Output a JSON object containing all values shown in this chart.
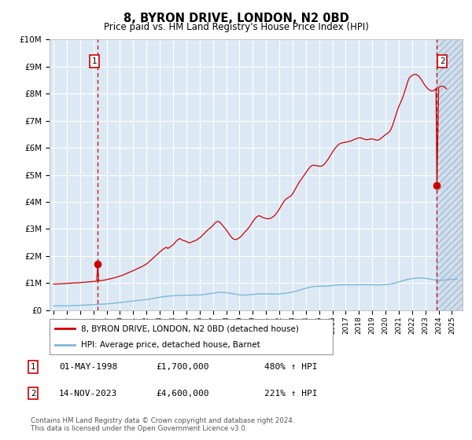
{
  "title": "8, BYRON DRIVE, LONDON, N2 0BD",
  "subtitle": "Price paid vs. HM Land Registry's House Price Index (HPI)",
  "sale1_date": "01-MAY-1998",
  "sale1_price": 1700000,
  "sale1_year": 1998.33,
  "sale1_label": "480% ↑ HPI",
  "sale2_date": "14-NOV-2023",
  "sale2_price": 4600000,
  "sale2_year": 2023.87,
  "sale2_label": "221% ↑ HPI",
  "hpi_line_color": "#7db8d8",
  "price_line_color": "#cc0000",
  "sale_marker_color": "#cc0000",
  "dashed_line_color": "#cc0000",
  "plot_area_color": "#dce9f5",
  "grid_color": "#ffffff",
  "ylim": [
    0,
    10000000
  ],
  "yticks": [
    0,
    1000000,
    2000000,
    3000000,
    4000000,
    5000000,
    6000000,
    7000000,
    8000000,
    9000000,
    10000000
  ],
  "ytick_labels": [
    "£0",
    "£1M",
    "£2M",
    "£3M",
    "£4M",
    "£5M",
    "£6M",
    "£7M",
    "£8M",
    "£9M",
    "£10M"
  ],
  "xlim_start": 1994.7,
  "xlim_end": 2025.8,
  "copyright_text": "Contains HM Land Registry data © Crown copyright and database right 2024.\nThis data is licensed under the Open Government Licence v3.0.",
  "legend_label1": "8, BYRON DRIVE, LONDON, N2 0BD (detached house)",
  "legend_label2": "HPI: Average price, detached house, Barnet",
  "shade_x_start": 2023.87,
  "hpi_data": [
    [
      1995.0,
      155000
    ],
    [
      1995.2,
      158000
    ],
    [
      1995.4,
      160000
    ],
    [
      1995.6,
      162000
    ],
    [
      1995.8,
      163000
    ],
    [
      1996.0,
      165000
    ],
    [
      1996.2,
      167000
    ],
    [
      1996.4,
      170000
    ],
    [
      1996.6,
      173000
    ],
    [
      1996.8,
      176000
    ],
    [
      1997.0,
      179000
    ],
    [
      1997.2,
      183000
    ],
    [
      1997.4,
      188000
    ],
    [
      1997.6,
      193000
    ],
    [
      1997.8,
      198000
    ],
    [
      1998.0,
      205000
    ],
    [
      1998.2,
      212000
    ],
    [
      1998.4,
      218000
    ],
    [
      1998.6,
      223000
    ],
    [
      1998.8,
      228000
    ],
    [
      1999.0,
      234000
    ],
    [
      1999.2,
      242000
    ],
    [
      1999.4,
      252000
    ],
    [
      1999.6,
      262000
    ],
    [
      1999.8,
      273000
    ],
    [
      2000.0,
      284000
    ],
    [
      2000.2,
      296000
    ],
    [
      2000.4,
      308000
    ],
    [
      2000.6,
      320000
    ],
    [
      2000.8,
      331000
    ],
    [
      2001.0,
      342000
    ],
    [
      2001.2,
      354000
    ],
    [
      2001.4,
      365000
    ],
    [
      2001.6,
      374000
    ],
    [
      2001.8,
      382000
    ],
    [
      2002.0,
      392000
    ],
    [
      2002.2,
      408000
    ],
    [
      2002.4,
      426000
    ],
    [
      2002.6,
      445000
    ],
    [
      2002.8,
      463000
    ],
    [
      2003.0,
      480000
    ],
    [
      2003.2,
      495000
    ],
    [
      2003.4,
      508000
    ],
    [
      2003.6,
      519000
    ],
    [
      2003.8,
      527000
    ],
    [
      2004.0,
      534000
    ],
    [
      2004.2,
      541000
    ],
    [
      2004.4,
      547000
    ],
    [
      2004.6,
      551000
    ],
    [
      2004.8,
      553000
    ],
    [
      2005.0,
      554000
    ],
    [
      2005.2,
      554000
    ],
    [
      2005.4,
      554000
    ],
    [
      2005.6,
      556000
    ],
    [
      2005.8,
      559000
    ],
    [
      2006.0,
      563000
    ],
    [
      2006.2,
      572000
    ],
    [
      2006.4,
      583000
    ],
    [
      2006.6,
      597000
    ],
    [
      2006.8,
      611000
    ],
    [
      2007.0,
      627000
    ],
    [
      2007.2,
      643000
    ],
    [
      2007.4,
      656000
    ],
    [
      2007.6,
      662000
    ],
    [
      2007.8,
      659000
    ],
    [
      2008.0,
      649000
    ],
    [
      2008.2,
      634000
    ],
    [
      2008.4,
      617000
    ],
    [
      2008.6,
      600000
    ],
    [
      2008.8,
      583000
    ],
    [
      2009.0,
      567000
    ],
    [
      2009.2,
      558000
    ],
    [
      2009.4,
      557000
    ],
    [
      2009.6,
      563000
    ],
    [
      2009.8,
      573000
    ],
    [
      2010.0,
      584000
    ],
    [
      2010.2,
      594000
    ],
    [
      2010.4,
      601000
    ],
    [
      2010.6,
      604000
    ],
    [
      2010.8,
      604000
    ],
    [
      2011.0,
      601000
    ],
    [
      2011.2,
      598000
    ],
    [
      2011.4,
      597000
    ],
    [
      2011.6,
      598000
    ],
    [
      2011.8,
      601000
    ],
    [
      2012.0,
      606000
    ],
    [
      2012.2,
      613000
    ],
    [
      2012.4,
      623000
    ],
    [
      2012.6,
      636000
    ],
    [
      2012.8,
      652000
    ],
    [
      2013.0,
      671000
    ],
    [
      2013.2,
      695000
    ],
    [
      2013.4,
      723000
    ],
    [
      2013.6,
      753000
    ],
    [
      2013.8,
      783000
    ],
    [
      2014.0,
      812000
    ],
    [
      2014.2,
      838000
    ],
    [
      2014.4,
      859000
    ],
    [
      2014.6,
      874000
    ],
    [
      2014.8,
      882000
    ],
    [
      2015.0,
      884000
    ],
    [
      2015.2,
      884000
    ],
    [
      2015.4,
      886000
    ],
    [
      2015.6,
      892000
    ],
    [
      2015.8,
      900000
    ],
    [
      2016.0,
      911000
    ],
    [
      2016.2,
      922000
    ],
    [
      2016.4,
      931000
    ],
    [
      2016.6,
      937000
    ],
    [
      2016.8,
      939000
    ],
    [
      2017.0,
      938000
    ],
    [
      2017.2,
      936000
    ],
    [
      2017.4,
      935000
    ],
    [
      2017.6,
      935000
    ],
    [
      2017.8,
      937000
    ],
    [
      2018.0,
      940000
    ],
    [
      2018.2,
      943000
    ],
    [
      2018.4,
      943000
    ],
    [
      2018.6,
      941000
    ],
    [
      2018.8,
      938000
    ],
    [
      2019.0,
      934000
    ],
    [
      2019.2,
      932000
    ],
    [
      2019.4,
      932000
    ],
    [
      2019.6,
      935000
    ],
    [
      2019.8,
      940000
    ],
    [
      2020.0,
      947000
    ],
    [
      2020.2,
      955000
    ],
    [
      2020.4,
      968000
    ],
    [
      2020.6,
      989000
    ],
    [
      2020.8,
      1015000
    ],
    [
      2021.0,
      1044000
    ],
    [
      2021.2,
      1075000
    ],
    [
      2021.4,
      1105000
    ],
    [
      2021.6,
      1132000
    ],
    [
      2021.8,
      1153000
    ],
    [
      2022.0,
      1168000
    ],
    [
      2022.2,
      1179000
    ],
    [
      2022.4,
      1188000
    ],
    [
      2022.6,
      1192000
    ],
    [
      2022.8,
      1188000
    ],
    [
      2023.0,
      1176000
    ],
    [
      2023.2,
      1160000
    ],
    [
      2023.4,
      1143000
    ],
    [
      2023.6,
      1128000
    ],
    [
      2023.8,
      1116000
    ],
    [
      2024.0,
      1109000
    ],
    [
      2024.2,
      1108000
    ],
    [
      2024.4,
      1113000
    ],
    [
      2024.6,
      1122000
    ],
    [
      2024.8,
      1133000
    ],
    [
      2025.0,
      1143000
    ],
    [
      2025.4,
      1150000
    ]
  ],
  "red_line_data": [
    [
      1995.0,
      970000
    ],
    [
      1995.1,
      960000
    ],
    [
      1995.2,
      975000
    ],
    [
      1995.3,
      968000
    ],
    [
      1995.4,
      972000
    ],
    [
      1995.5,
      980000
    ],
    [
      1995.6,
      975000
    ],
    [
      1995.7,
      985000
    ],
    [
      1995.8,
      978000
    ],
    [
      1995.9,
      990000
    ],
    [
      1996.0,
      988000
    ],
    [
      1996.1,
      995000
    ],
    [
      1996.2,
      1000000
    ],
    [
      1996.3,
      993000
    ],
    [
      1996.4,
      1005000
    ],
    [
      1996.5,
      1010000
    ],
    [
      1996.6,
      1005000
    ],
    [
      1996.7,
      1015000
    ],
    [
      1996.8,
      1008000
    ],
    [
      1996.9,
      1020000
    ],
    [
      1997.0,
      1018000
    ],
    [
      1997.1,
      1025000
    ],
    [
      1997.2,
      1032000
    ],
    [
      1997.3,
      1028000
    ],
    [
      1997.4,
      1038000
    ],
    [
      1997.5,
      1045000
    ],
    [
      1997.6,
      1040000
    ],
    [
      1997.7,
      1052000
    ],
    [
      1997.8,
      1048000
    ],
    [
      1997.9,
      1060000
    ],
    [
      1998.0,
      1058000
    ],
    [
      1998.1,
      1068000
    ],
    [
      1998.2,
      1065000
    ],
    [
      1998.25,
      1072000
    ],
    [
      1998.33,
      1700000
    ],
    [
      1998.4,
      1082000
    ],
    [
      1998.5,
      1090000
    ],
    [
      1998.6,
      1095000
    ],
    [
      1998.7,
      1105000
    ],
    [
      1998.8,
      1110000
    ],
    [
      1999.0,
      1130000
    ],
    [
      1999.2,
      1155000
    ],
    [
      1999.4,
      1175000
    ],
    [
      1999.6,
      1200000
    ],
    [
      1999.8,
      1230000
    ],
    [
      2000.0,
      1260000
    ],
    [
      2000.2,
      1295000
    ],
    [
      2000.4,
      1335000
    ],
    [
      2000.6,
      1380000
    ],
    [
      2000.8,
      1420000
    ],
    [
      2001.0,
      1460000
    ],
    [
      2001.2,
      1510000
    ],
    [
      2001.4,
      1555000
    ],
    [
      2001.6,
      1600000
    ],
    [
      2001.8,
      1650000
    ],
    [
      2002.0,
      1710000
    ],
    [
      2002.2,
      1790000
    ],
    [
      2002.4,
      1880000
    ],
    [
      2002.6,
      1970000
    ],
    [
      2002.8,
      2060000
    ],
    [
      2003.0,
      2150000
    ],
    [
      2003.1,
      2190000
    ],
    [
      2003.2,
      2240000
    ],
    [
      2003.3,
      2270000
    ],
    [
      2003.4,
      2300000
    ],
    [
      2003.5,
      2330000
    ],
    [
      2003.6,
      2280000
    ],
    [
      2003.7,
      2310000
    ],
    [
      2003.8,
      2350000
    ],
    [
      2003.9,
      2380000
    ],
    [
      2004.0,
      2420000
    ],
    [
      2004.1,
      2470000
    ],
    [
      2004.2,
      2530000
    ],
    [
      2004.3,
      2580000
    ],
    [
      2004.4,
      2620000
    ],
    [
      2004.5,
      2650000
    ],
    [
      2004.6,
      2620000
    ],
    [
      2004.7,
      2590000
    ],
    [
      2004.8,
      2570000
    ],
    [
      2004.9,
      2560000
    ],
    [
      2005.0,
      2540000
    ],
    [
      2005.1,
      2510000
    ],
    [
      2005.2,
      2490000
    ],
    [
      2005.3,
      2500000
    ],
    [
      2005.4,
      2520000
    ],
    [
      2005.5,
      2540000
    ],
    [
      2005.6,
      2560000
    ],
    [
      2005.7,
      2580000
    ],
    [
      2005.8,
      2600000
    ],
    [
      2005.9,
      2640000
    ],
    [
      2006.0,
      2670000
    ],
    [
      2006.1,
      2710000
    ],
    [
      2006.2,
      2760000
    ],
    [
      2006.3,
      2810000
    ],
    [
      2006.4,
      2860000
    ],
    [
      2006.5,
      2910000
    ],
    [
      2006.6,
      2960000
    ],
    [
      2006.7,
      3000000
    ],
    [
      2006.8,
      3040000
    ],
    [
      2006.9,
      3080000
    ],
    [
      2007.0,
      3130000
    ],
    [
      2007.1,
      3190000
    ],
    [
      2007.2,
      3240000
    ],
    [
      2007.3,
      3270000
    ],
    [
      2007.4,
      3280000
    ],
    [
      2007.5,
      3260000
    ],
    [
      2007.6,
      3210000
    ],
    [
      2007.7,
      3150000
    ],
    [
      2007.8,
      3090000
    ],
    [
      2007.9,
      3030000
    ],
    [
      2008.0,
      2970000
    ],
    [
      2008.1,
      2900000
    ],
    [
      2008.2,
      2830000
    ],
    [
      2008.3,
      2760000
    ],
    [
      2008.4,
      2700000
    ],
    [
      2008.5,
      2650000
    ],
    [
      2008.6,
      2620000
    ],
    [
      2008.7,
      2610000
    ],
    [
      2008.8,
      2620000
    ],
    [
      2008.9,
      2650000
    ],
    [
      2009.0,
      2680000
    ],
    [
      2009.1,
      2720000
    ],
    [
      2009.2,
      2770000
    ],
    [
      2009.3,
      2830000
    ],
    [
      2009.4,
      2890000
    ],
    [
      2009.5,
      2940000
    ],
    [
      2009.6,
      2990000
    ],
    [
      2009.7,
      3050000
    ],
    [
      2009.8,
      3120000
    ],
    [
      2009.9,
      3190000
    ],
    [
      2010.0,
      3270000
    ],
    [
      2010.1,
      3340000
    ],
    [
      2010.2,
      3400000
    ],
    [
      2010.3,
      3450000
    ],
    [
      2010.4,
      3480000
    ],
    [
      2010.5,
      3490000
    ],
    [
      2010.6,
      3470000
    ],
    [
      2010.7,
      3440000
    ],
    [
      2010.8,
      3420000
    ],
    [
      2010.9,
      3400000
    ],
    [
      2011.0,
      3390000
    ],
    [
      2011.1,
      3380000
    ],
    [
      2011.2,
      3380000
    ],
    [
      2011.3,
      3390000
    ],
    [
      2011.4,
      3410000
    ],
    [
      2011.5,
      3440000
    ],
    [
      2011.6,
      3480000
    ],
    [
      2011.7,
      3530000
    ],
    [
      2011.8,
      3590000
    ],
    [
      2011.9,
      3660000
    ],
    [
      2012.0,
      3740000
    ],
    [
      2012.1,
      3820000
    ],
    [
      2012.2,
      3900000
    ],
    [
      2012.3,
      3980000
    ],
    [
      2012.4,
      4050000
    ],
    [
      2012.5,
      4100000
    ],
    [
      2012.6,
      4140000
    ],
    [
      2012.7,
      4170000
    ],
    [
      2012.8,
      4200000
    ],
    [
      2012.9,
      4240000
    ],
    [
      2013.0,
      4300000
    ],
    [
      2013.1,
      4380000
    ],
    [
      2013.2,
      4470000
    ],
    [
      2013.3,
      4560000
    ],
    [
      2013.4,
      4650000
    ],
    [
      2013.5,
      4730000
    ],
    [
      2013.6,
      4800000
    ],
    [
      2013.7,
      4870000
    ],
    [
      2013.8,
      4940000
    ],
    [
      2013.9,
      5010000
    ],
    [
      2014.0,
      5080000
    ],
    [
      2014.1,
      5150000
    ],
    [
      2014.2,
      5220000
    ],
    [
      2014.3,
      5280000
    ],
    [
      2014.4,
      5330000
    ],
    [
      2014.5,
      5350000
    ],
    [
      2014.6,
      5360000
    ],
    [
      2014.7,
      5350000
    ],
    [
      2014.8,
      5340000
    ],
    [
      2014.9,
      5330000
    ],
    [
      2015.0,
      5320000
    ],
    [
      2015.1,
      5320000
    ],
    [
      2015.2,
      5330000
    ],
    [
      2015.3,
      5360000
    ],
    [
      2015.4,
      5400000
    ],
    [
      2015.5,
      5460000
    ],
    [
      2015.6,
      5530000
    ],
    [
      2015.7,
      5600000
    ],
    [
      2015.8,
      5680000
    ],
    [
      2015.9,
      5760000
    ],
    [
      2016.0,
      5840000
    ],
    [
      2016.1,
      5910000
    ],
    [
      2016.2,
      5980000
    ],
    [
      2016.3,
      6040000
    ],
    [
      2016.4,
      6090000
    ],
    [
      2016.5,
      6140000
    ],
    [
      2016.6,
      6160000
    ],
    [
      2016.7,
      6180000
    ],
    [
      2016.8,
      6190000
    ],
    [
      2016.9,
      6200000
    ],
    [
      2017.0,
      6210000
    ],
    [
      2017.1,
      6220000
    ],
    [
      2017.2,
      6230000
    ],
    [
      2017.3,
      6240000
    ],
    [
      2017.4,
      6260000
    ],
    [
      2017.5,
      6280000
    ],
    [
      2017.6,
      6300000
    ],
    [
      2017.7,
      6320000
    ],
    [
      2017.8,
      6340000
    ],
    [
      2017.9,
      6360000
    ],
    [
      2018.0,
      6370000
    ],
    [
      2018.1,
      6370000
    ],
    [
      2018.2,
      6360000
    ],
    [
      2018.3,
      6340000
    ],
    [
      2018.4,
      6320000
    ],
    [
      2018.5,
      6310000
    ],
    [
      2018.6,
      6300000
    ],
    [
      2018.7,
      6310000
    ],
    [
      2018.8,
      6320000
    ],
    [
      2018.9,
      6330000
    ],
    [
      2019.0,
      6330000
    ],
    [
      2019.1,
      6320000
    ],
    [
      2019.2,
      6300000
    ],
    [
      2019.3,
      6290000
    ],
    [
      2019.4,
      6280000
    ],
    [
      2019.5,
      6300000
    ],
    [
      2019.6,
      6330000
    ],
    [
      2019.7,
      6370000
    ],
    [
      2019.8,
      6410000
    ],
    [
      2019.9,
      6450000
    ],
    [
      2020.0,
      6490000
    ],
    [
      2020.1,
      6520000
    ],
    [
      2020.2,
      6550000
    ],
    [
      2020.3,
      6600000
    ],
    [
      2020.4,
      6680000
    ],
    [
      2020.5,
      6790000
    ],
    [
      2020.6,
      6930000
    ],
    [
      2020.7,
      7090000
    ],
    [
      2020.8,
      7250000
    ],
    [
      2020.9,
      7400000
    ],
    [
      2021.0,
      7530000
    ],
    [
      2021.1,
      7640000
    ],
    [
      2021.2,
      7750000
    ],
    [
      2021.3,
      7870000
    ],
    [
      2021.4,
      8010000
    ],
    [
      2021.5,
      8170000
    ],
    [
      2021.6,
      8340000
    ],
    [
      2021.7,
      8490000
    ],
    [
      2021.8,
      8590000
    ],
    [
      2021.9,
      8640000
    ],
    [
      2022.0,
      8670000
    ],
    [
      2022.1,
      8700000
    ],
    [
      2022.2,
      8720000
    ],
    [
      2022.3,
      8710000
    ],
    [
      2022.4,
      8690000
    ],
    [
      2022.5,
      8650000
    ],
    [
      2022.6,
      8590000
    ],
    [
      2022.7,
      8520000
    ],
    [
      2022.8,
      8440000
    ],
    [
      2022.9,
      8360000
    ],
    [
      2023.0,
      8290000
    ],
    [
      2023.1,
      8230000
    ],
    [
      2023.2,
      8180000
    ],
    [
      2023.3,
      8140000
    ],
    [
      2023.4,
      8110000
    ],
    [
      2023.5,
      8100000
    ],
    [
      2023.6,
      8110000
    ],
    [
      2023.7,
      8140000
    ],
    [
      2023.8,
      8190000
    ],
    [
      2023.87,
      4600000
    ],
    [
      2024.0,
      8230000
    ],
    [
      2024.1,
      8260000
    ],
    [
      2024.2,
      8280000
    ],
    [
      2024.3,
      8280000
    ],
    [
      2024.4,
      8260000
    ],
    [
      2024.5,
      8220000
    ],
    [
      2024.6,
      8180000
    ]
  ]
}
